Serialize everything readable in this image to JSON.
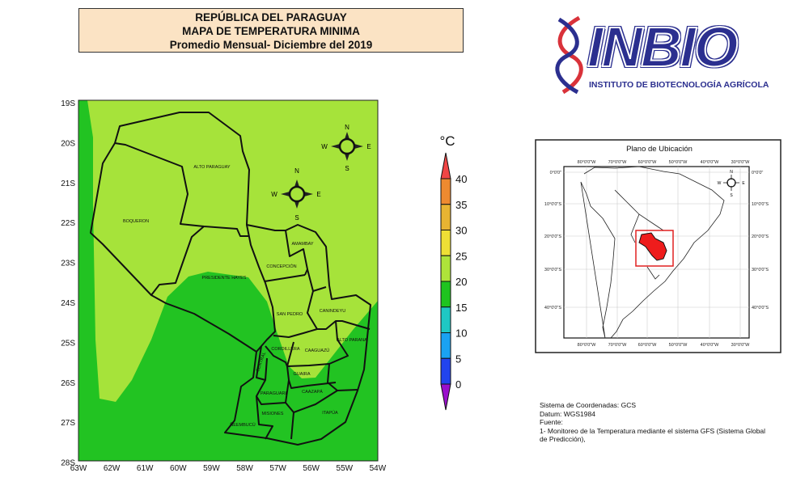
{
  "title": {
    "line1": "REPÚBLICA DEL PARAGUAY",
    "line2": "MAPA DE TEMPERATURA MINIMA",
    "line3": "Promedio Mensual-  Diciembre del 2019"
  },
  "logo": {
    "name": "INBIO",
    "subtitle": "INSTITUTO DE BIOTECNOLOGÍA AGRÍCOLA"
  },
  "map": {
    "lat_labels": [
      "19S",
      "20S",
      "21S",
      "22S",
      "23S",
      "24S",
      "25S",
      "26S",
      "27S",
      "28S"
    ],
    "lon_labels": [
      "63W",
      "62W",
      "61W",
      "60W",
      "59W",
      "58W",
      "57W",
      "56W",
      "55W",
      "54W"
    ],
    "departments": [
      "ALTO PARAGUAY",
      "BOQUERON",
      "PRESIDENTE HAYES",
      "CONCEPCIÓN",
      "AMAMBAY",
      "SAN PEDRO",
      "CANINDEYU",
      "CORDILLERA",
      "CENTRAL",
      "CAAGUAZÚ",
      "ALTO PARANA",
      "GUAIRA",
      "PARAGUARI",
      "CAAZAPÁ",
      "MISIONES",
      "ÑEEMBUCÚ",
      "ITAPÚA"
    ],
    "compass": {
      "n": "N",
      "s": "S",
      "e": "E",
      "w": "W"
    },
    "colors": {
      "band_20_25": "#a6e33a",
      "band_15_20": "#22c322"
    }
  },
  "legend": {
    "unit": "°C",
    "ticks": [
      "40",
      "35",
      "30",
      "25",
      "20",
      "15",
      "10",
      "5",
      "0"
    ],
    "colors": [
      "#f04545",
      "#ee8a30",
      "#e8b432",
      "#eedf35",
      "#aee33a",
      "#1fc41f",
      "#1fc8c4",
      "#1aa2f2",
      "#2244ee",
      "#9a10cc"
    ]
  },
  "location_map": {
    "title": "Plano de Ubicación",
    "lon_labels": [
      "80°0'0\"W",
      "70°0'0\"W",
      "60°0'0\"W",
      "50°0'0\"W",
      "40°0'0\"W",
      "30°0'0\"W"
    ],
    "lat_labels": [
      "0°0'0\"",
      "10°0'0\"S",
      "20°0'0\"S",
      "30°0'0\"S",
      "40°0'0\"S"
    ],
    "compass": {
      "n": "N",
      "s": "S",
      "e": "E",
      "w": "W"
    }
  },
  "footnote": {
    "line1": "Sistema de Coordenadas: GCS",
    "line2": "Datum: WGS1984",
    "line3": "Fuente:",
    "line4": "1- Monitoreo de la Temperatura mediante el sistema GFS (Sistema Global",
    "line5": "de Predicción),"
  }
}
